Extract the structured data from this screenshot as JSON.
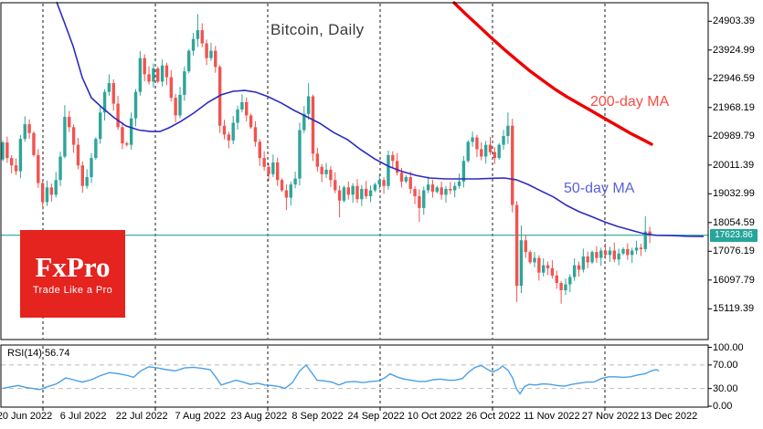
{
  "overlays": {
    "ma200_label": "200-day MA",
    "ma50_label": "50-day MA",
    "rsi_label": "RSI(14) 56.74",
    "current_price_label": "17623.86"
  },
  "logo": {
    "name": "FxPro",
    "tagline": "Trade Like a Pro"
  },
  "colors": {
    "up": "#2ea599",
    "down": "#f0544f",
    "ma50": "#2b2bc4",
    "ma200": "#ee0000",
    "ma50_label": "#5b5fd8",
    "ma200_label": "#f74d45",
    "price_line": "#26a69a",
    "badge_bg": "#26a69a",
    "rsi": "#4aa0e6",
    "grid": "#1a1a1a",
    "rsi_grid": "#bbbbbb",
    "border": "#000000",
    "title": "#3a3a3a",
    "logo_bg": "#e5231f",
    "logo_fg": "#ffffff"
  },
  "chart_data": {
    "type": "candlestick",
    "title": "Bitcoin, Daily",
    "timeframe": "Daily",
    "current_price": 17623.86,
    "y_axis": {
      "tick_labels": [
        "24903.39",
        "23924.99",
        "22946.59",
        "21968.19",
        "20989.79",
        "20011.39",
        "19032.99",
        "18054.59",
        "17076.19",
        "16097.79",
        "15119.39"
      ]
    },
    "rsi_axis": {
      "tick_labels": [
        "100.00",
        "70.00",
        "30.00",
        "0.00"
      ],
      "values": [
        100,
        70,
        30,
        0
      ],
      "bands": [
        70,
        30
      ]
    },
    "x_axis": {
      "tick_labels": [
        "20 Jun 2022",
        "6 Jul 2022",
        "22 Jul 2022",
        "7 Aug 2022",
        "23 Aug 2022",
        "8 Sep 2022",
        "24 Sep 2022",
        "10 Oct 2022",
        "26 Oct 2022",
        "11 Nov 2022",
        "27 Nov 2022",
        "13 Dec 2022"
      ]
    },
    "first_open": 20200,
    "closes": [
      20780,
      20250,
      20000,
      19800,
      20900,
      21400,
      21100,
      20350,
      19400,
      18750,
      19250,
      19000,
      19500,
      20300,
      21650,
      21300,
      20700,
      20000,
      19300,
      19600,
      20250,
      20900,
      21800,
      22500,
      22800,
      22100,
      21300,
      20750,
      20700,
      21600,
      22500,
      23650,
      23100,
      22850,
      23300,
      22850,
      23400,
      23000,
      22300,
      21700,
      22400,
      23200,
      23900,
      24300,
      24600,
      24150,
      23650,
      23900,
      23350,
      21350,
      21050,
      20850,
      21450,
      21900,
      22150,
      21700,
      21300,
      20800,
      20250,
      19950,
      19700,
      20100,
      19500,
      19150,
      18900,
      19350,
      19550,
      21200,
      21750,
      22350,
      20400,
      19950,
      19700,
      19850,
      19500,
      19150,
      18800,
      19250,
      19000,
      19300,
      18850,
      19200,
      18950,
      19150,
      19350,
      19500,
      19300,
      20350,
      20150,
      19750,
      19450,
      19600,
      19200,
      18950,
      18550,
      19150,
      19350,
      19100,
      19250,
      19000,
      19200,
      19150,
      19300,
      19450,
      20150,
      20800,
      20950,
      20550,
      20300,
      20700,
      20450,
      20250,
      20700,
      21000,
      21350,
      18650,
      15900,
      17450,
      17050,
      16700,
      16850,
      16350,
      16600,
      16500,
      16250,
      16000,
      15750,
      15950,
      16200,
      16600,
      16450,
      16900,
      16700,
      17050,
      16850,
      17100,
      16950,
      17100,
      16800,
      17000,
      17150,
      16950,
      17100,
      17200,
      17150,
      17750,
      17623.86
    ],
    "high_overrides": {
      "14": 22050,
      "24": 23100,
      "44": 25150,
      "67": 21450,
      "69": 22800,
      "87": 20500,
      "114": 21800,
      "117": 17950,
      "145": 18270
    },
    "low_overrides": {
      "9": 18500,
      "49": 21100,
      "64": 18480,
      "70": 20150,
      "76": 18230,
      "94": 18080,
      "115": 18400,
      "116": 15350,
      "117": 15650,
      "126": 15290,
      "145": 17050,
      "146": 17350
    },
    "ma50": [
      [
        62,
        25560
      ],
      [
        70,
        24900
      ],
      [
        80,
        24060
      ],
      [
        90,
        22990
      ],
      [
        100,
        22300
      ],
      [
        112,
        21960
      ],
      [
        125,
        21620
      ],
      [
        138,
        21340
      ],
      [
        152,
        21200
      ],
      [
        165,
        21150
      ],
      [
        175,
        21150
      ],
      [
        185,
        21280
      ],
      [
        198,
        21500
      ],
      [
        212,
        21780
      ],
      [
        228,
        22150
      ],
      [
        242,
        22400
      ],
      [
        255,
        22520
      ],
      [
        268,
        22550
      ],
      [
        280,
        22490
      ],
      [
        293,
        22340
      ],
      [
        308,
        22120
      ],
      [
        322,
        21870
      ],
      [
        336,
        21650
      ],
      [
        350,
        21430
      ],
      [
        365,
        21120
      ],
      [
        380,
        20880
      ],
      [
        395,
        20530
      ],
      [
        410,
        20220
      ],
      [
        425,
        19970
      ],
      [
        440,
        19790
      ],
      [
        455,
        19660
      ],
      [
        470,
        19570
      ],
      [
        488,
        19540
      ],
      [
        505,
        19540
      ],
      [
        522,
        19540
      ],
      [
        540,
        19560
      ],
      [
        552,
        19570
      ],
      [
        565,
        19510
      ],
      [
        578,
        19350
      ],
      [
        592,
        19130
      ],
      [
        606,
        18920
      ],
      [
        620,
        18640
      ],
      [
        634,
        18420
      ],
      [
        648,
        18250
      ],
      [
        662,
        18070
      ],
      [
        676,
        17920
      ],
      [
        690,
        17800
      ],
      [
        704,
        17680
      ],
      [
        718,
        17620
      ],
      [
        735,
        17610
      ],
      [
        752,
        17590
      ],
      [
        770,
        17580
      ]
    ],
    "ma200": [
      [
        497,
        25530
      ],
      [
        510,
        25140
      ],
      [
        524,
        24740
      ],
      [
        538,
        24330
      ],
      [
        552,
        23940
      ],
      [
        566,
        23570
      ],
      [
        580,
        23210
      ],
      [
        594,
        22890
      ],
      [
        607,
        22600
      ],
      [
        620,
        22340
      ],
      [
        634,
        22090
      ],
      [
        648,
        21840
      ],
      [
        662,
        21590
      ],
      [
        676,
        21340
      ],
      [
        690,
        21090
      ],
      [
        702,
        20900
      ],
      [
        713,
        20720
      ]
    ],
    "rsi": [
      [
        3,
        30
      ],
      [
        12,
        33
      ],
      [
        20,
        35
      ],
      [
        28,
        32
      ],
      [
        36,
        30
      ],
      [
        43,
        28
      ],
      [
        52,
        33
      ],
      [
        62,
        38
      ],
      [
        72,
        48
      ],
      [
        80,
        45
      ],
      [
        90,
        41
      ],
      [
        100,
        45
      ],
      [
        110,
        52
      ],
      [
        120,
        57
      ],
      [
        130,
        55
      ],
      [
        140,
        52
      ],
      [
        146,
        49
      ],
      [
        154,
        60
      ],
      [
        163,
        67
      ],
      [
        172,
        65
      ],
      [
        182,
        62
      ],
      [
        192,
        60
      ],
      [
        202,
        65
      ],
      [
        212,
        66
      ],
      [
        222,
        64
      ],
      [
        230,
        62
      ],
      [
        236,
        50
      ],
      [
        242,
        36
      ],
      [
        250,
        40
      ],
      [
        258,
        44
      ],
      [
        266,
        41
      ],
      [
        274,
        37
      ],
      [
        282,
        39
      ],
      [
        290,
        36
      ],
      [
        298,
        35
      ],
      [
        306,
        33
      ],
      [
        312,
        30
      ],
      [
        320,
        40
      ],
      [
        328,
        60
      ],
      [
        335,
        70
      ],
      [
        341,
        57
      ],
      [
        347,
        44
      ],
      [
        355,
        43
      ],
      [
        363,
        41
      ],
      [
        371,
        36
      ],
      [
        379,
        41
      ],
      [
        388,
        42
      ],
      [
        397,
        40
      ],
      [
        406,
        42
      ],
      [
        414,
        43
      ],
      [
        421,
        48
      ],
      [
        427,
        55
      ],
      [
        434,
        50
      ],
      [
        442,
        46
      ],
      [
        450,
        44
      ],
      [
        458,
        42
      ],
      [
        466,
        42
      ],
      [
        474,
        45
      ],
      [
        482,
        46
      ],
      [
        490,
        44
      ],
      [
        498,
        44
      ],
      [
        506,
        47
      ],
      [
        513,
        58
      ],
      [
        520,
        66
      ],
      [
        527,
        69
      ],
      [
        533,
        63
      ],
      [
        539,
        58
      ],
      [
        545,
        62
      ],
      [
        550,
        68
      ],
      [
        556,
        61
      ],
      [
        561,
        48
      ],
      [
        565,
        30
      ],
      [
        569,
        21
      ],
      [
        574,
        33
      ],
      [
        579,
        37
      ],
      [
        586,
        36
      ],
      [
        594,
        38
      ],
      [
        602,
        37
      ],
      [
        610,
        35
      ],
      [
        618,
        34
      ],
      [
        626,
        37
      ],
      [
        634,
        39
      ],
      [
        642,
        41
      ],
      [
        650,
        41
      ],
      [
        658,
        47
      ],
      [
        666,
        50
      ],
      [
        674,
        50
      ],
      [
        682,
        49
      ],
      [
        690,
        50
      ],
      [
        698,
        53
      ],
      [
        706,
        55
      ],
      [
        713,
        60
      ],
      [
        718,
        62
      ],
      [
        721,
        60
      ]
    ]
  }
}
